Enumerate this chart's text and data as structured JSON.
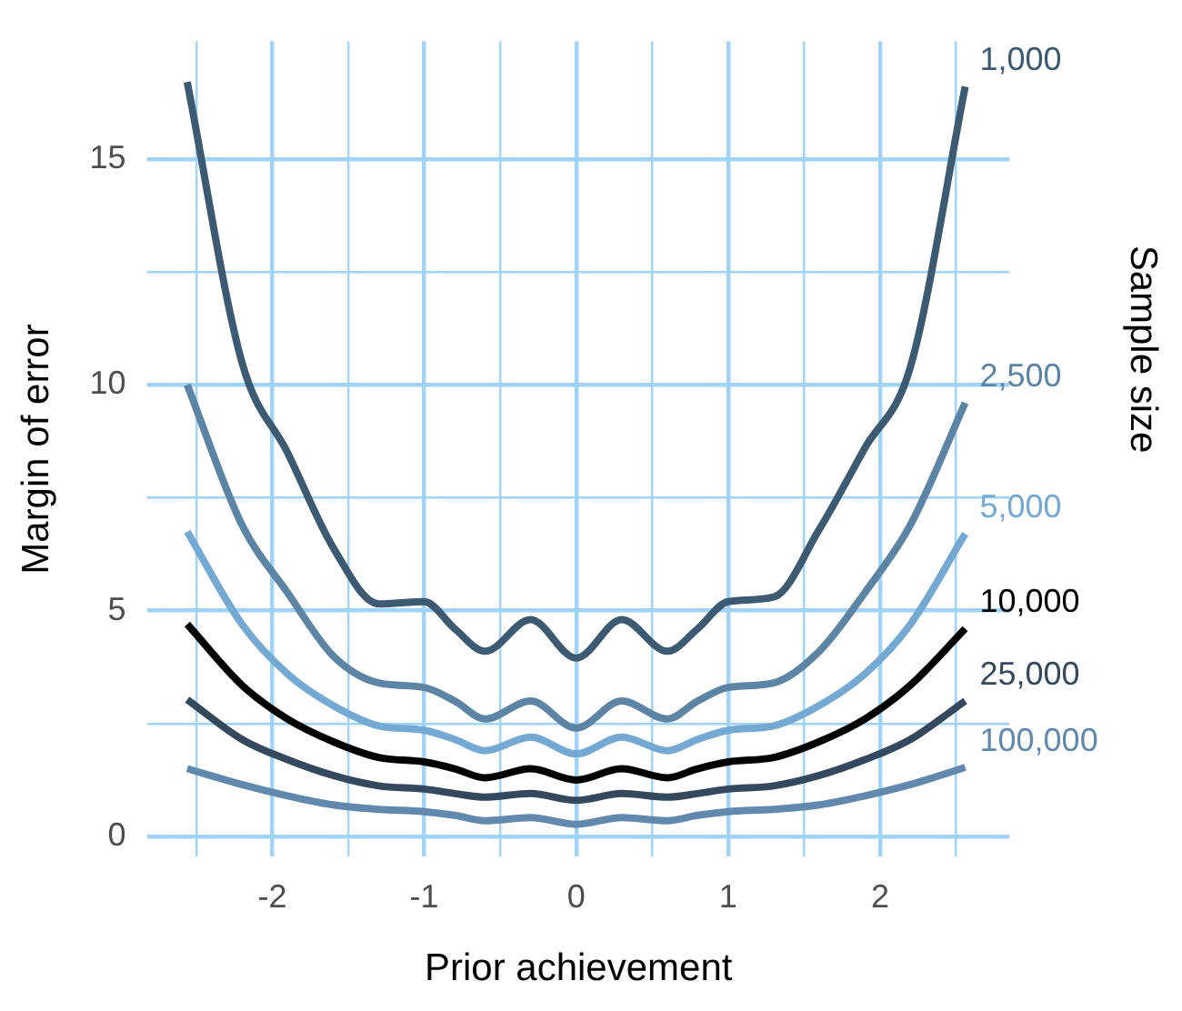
{
  "chart_data": {
    "type": "line",
    "xlabel": "Prior achievement",
    "ylabel": "Margin of error",
    "y2label": "Sample size",
    "xlim": [
      -2.82,
      2.85
    ],
    "ylim": [
      -0.45,
      17.6
    ],
    "xticks": [
      {
        "value": -2.5,
        "label": null
      },
      -2,
      {
        "value": -1.5,
        "label": null
      },
      -1,
      {
        "value": -0.5,
        "label": null
      },
      0,
      {
        "value": 0.5,
        "label": null
      },
      1,
      {
        "value": 1.5,
        "label": null
      },
      2,
      {
        "value": 2.5,
        "label": null
      }
    ],
    "yticks": [
      0,
      {
        "value": 2.5,
        "label": null
      },
      5,
      {
        "value": 7.5,
        "label": null
      },
      10,
      {
        "value": 12.5,
        "label": null
      },
      15
    ],
    "grid": true,
    "legend": false,
    "marker": "none",
    "line_style": "solid",
    "x": [
      -2.56,
      -2.2,
      -1.9,
      -1.6,
      -1.3,
      -1,
      -0.8,
      -0.6,
      -0.3,
      0,
      0.3,
      0.6,
      0.8,
      1,
      1.3,
      1.6,
      1.9,
      2.2,
      2.56
    ],
    "series": [
      {
        "name": "1,000",
        "color": "#3d5a73",
        "values": [
          16.7,
          10.5,
          8.5,
          6.4,
          5.15,
          5.2,
          4.6,
          4.1,
          4.8,
          3.95,
          4.8,
          4.1,
          4.6,
          5.2,
          5.3,
          6.8,
          8.6,
          10.4,
          16.6
        ]
      },
      {
        "name": "2,500",
        "color": "#5c84a4",
        "values": [
          10.0,
          6.9,
          5.4,
          4.0,
          3.4,
          3.3,
          3.0,
          2.6,
          3.0,
          2.4,
          3.0,
          2.6,
          3.0,
          3.3,
          3.4,
          4.1,
          5.4,
          6.9,
          9.6
        ]
      },
      {
        "name": "5,000",
        "color": "#74a9d4",
        "values": [
          6.75,
          4.7,
          3.6,
          2.9,
          2.45,
          2.35,
          2.15,
          1.9,
          2.2,
          1.83,
          2.2,
          1.9,
          2.15,
          2.35,
          2.45,
          2.9,
          3.6,
          4.7,
          6.7
        ]
      },
      {
        "name": "10,000",
        "color": "#000000",
        "values": [
          4.7,
          3.35,
          2.6,
          2.1,
          1.75,
          1.65,
          1.5,
          1.3,
          1.5,
          1.25,
          1.5,
          1.3,
          1.5,
          1.65,
          1.75,
          2.1,
          2.6,
          3.35,
          4.6
        ]
      },
      {
        "name": "25,000",
        "color": "#34495e",
        "values": [
          3.03,
          2.15,
          1.7,
          1.35,
          1.12,
          1.05,
          0.95,
          0.87,
          0.95,
          0.8,
          0.95,
          0.87,
          0.95,
          1.05,
          1.12,
          1.35,
          1.7,
          2.15,
          3.0
        ]
      },
      {
        "name": "100,000",
        "color": "#6089ad",
        "values": [
          1.5,
          1.15,
          0.9,
          0.7,
          0.6,
          0.55,
          0.47,
          0.35,
          0.42,
          0.27,
          0.42,
          0.35,
          0.47,
          0.55,
          0.6,
          0.7,
          0.9,
          1.15,
          1.53
        ]
      }
    ]
  }
}
